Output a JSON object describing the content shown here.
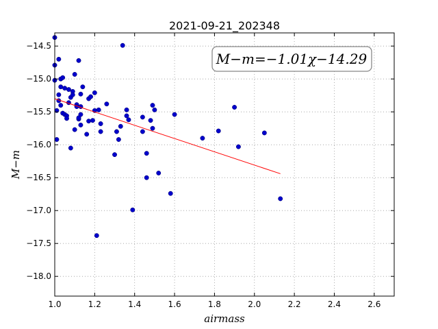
{
  "chart_data": {
    "type": "scatter",
    "title": "2021-09-21_202348",
    "xlabel": "airmass",
    "ylabel": "M−m",
    "xlim": [
      1.0,
      2.7
    ],
    "ylim": [
      -18.3,
      -14.3
    ],
    "y_inverted": true,
    "grid": true,
    "x_ticks": [
      1.0,
      1.2,
      1.4,
      1.6,
      1.8,
      2.0,
      2.2,
      2.4,
      2.6
    ],
    "x_tick_labels": [
      "1.0",
      "1.2",
      "1.4",
      "1.6",
      "1.8",
      "2.0",
      "2.2",
      "2.4",
      "2.6"
    ],
    "y_ticks": [
      -14.5,
      -15.0,
      -15.5,
      -16.0,
      -16.5,
      -17.0,
      -17.5,
      -18.0
    ],
    "y_tick_labels": [
      "−14.5",
      "−15.0",
      "−15.5",
      "−16.0",
      "−16.5",
      "−17.0",
      "−17.5",
      "−18.0"
    ],
    "annotation": "M−m=−1.01χ−14.29",
    "colors": {
      "points": "#0000cc",
      "fit_line": "#ff0000",
      "grid": "#999999"
    },
    "series": [
      {
        "type": "scatter",
        "points": [
          [
            1.0,
            -14.37
          ],
          [
            1.0,
            -14.79
          ],
          [
            1.0,
            -15.02
          ],
          [
            1.01,
            -15.48
          ],
          [
            1.01,
            -15.92
          ],
          [
            1.02,
            -14.7
          ],
          [
            1.02,
            -15.24
          ],
          [
            1.02,
            -15.33
          ],
          [
            1.03,
            -15.0
          ],
          [
            1.03,
            -15.12
          ],
          [
            1.03,
            -15.4
          ],
          [
            1.04,
            -14.98
          ],
          [
            1.04,
            -15.52
          ],
          [
            1.05,
            -15.14
          ],
          [
            1.05,
            -15.54
          ],
          [
            1.06,
            -15.56
          ],
          [
            1.06,
            -15.6
          ],
          [
            1.07,
            -15.16
          ],
          [
            1.07,
            -15.36
          ],
          [
            1.08,
            -16.05
          ],
          [
            1.08,
            -15.28
          ],
          [
            1.09,
            -15.19
          ],
          [
            1.09,
            -15.24
          ],
          [
            1.1,
            -15.77
          ],
          [
            1.1,
            -14.93
          ],
          [
            1.11,
            -15.39
          ],
          [
            1.11,
            -15.42
          ],
          [
            1.12,
            -15.61
          ],
          [
            1.12,
            -15.59
          ],
          [
            1.13,
            -15.7
          ],
          [
            1.13,
            -15.54
          ],
          [
            1.13,
            -15.23
          ],
          [
            1.14,
            -15.12
          ],
          [
            1.13,
            -15.42
          ],
          [
            1.12,
            -14.72
          ],
          [
            1.16,
            -15.84
          ],
          [
            1.17,
            -15.64
          ],
          [
            1.17,
            -15.3
          ],
          [
            1.18,
            -15.27
          ],
          [
            1.19,
            -15.63
          ],
          [
            1.2,
            -15.21
          ],
          [
            1.2,
            -15.48
          ],
          [
            1.21,
            -17.38
          ],
          [
            1.22,
            -15.47
          ],
          [
            1.23,
            -15.68
          ],
          [
            1.23,
            -15.8
          ],
          [
            1.26,
            -15.38
          ],
          [
            1.3,
            -16.15
          ],
          [
            1.31,
            -15.8
          ],
          [
            1.32,
            -15.92
          ],
          [
            1.33,
            -15.72
          ],
          [
            1.34,
            -14.49
          ],
          [
            1.36,
            -15.47
          ],
          [
            1.36,
            -15.56
          ],
          [
            1.37,
            -15.62
          ],
          [
            1.39,
            -16.99
          ],
          [
            1.44,
            -15.58
          ],
          [
            1.44,
            -15.8
          ],
          [
            1.46,
            -16.13
          ],
          [
            1.46,
            -16.5
          ],
          [
            1.48,
            -15.63
          ],
          [
            1.49,
            -15.75
          ],
          [
            1.49,
            -15.4
          ],
          [
            1.5,
            -15.47
          ],
          [
            1.52,
            -16.43
          ],
          [
            1.58,
            -16.74
          ],
          [
            1.6,
            -15.54
          ],
          [
            1.74,
            -15.9
          ],
          [
            1.82,
            -15.79
          ],
          [
            1.9,
            -15.43
          ],
          [
            1.92,
            -16.03
          ],
          [
            2.05,
            -15.82
          ],
          [
            2.13,
            -16.82
          ]
        ]
      },
      {
        "type": "line",
        "points": [
          [
            1.0,
            -15.3
          ],
          [
            2.13,
            -16.44
          ]
        ]
      }
    ]
  }
}
